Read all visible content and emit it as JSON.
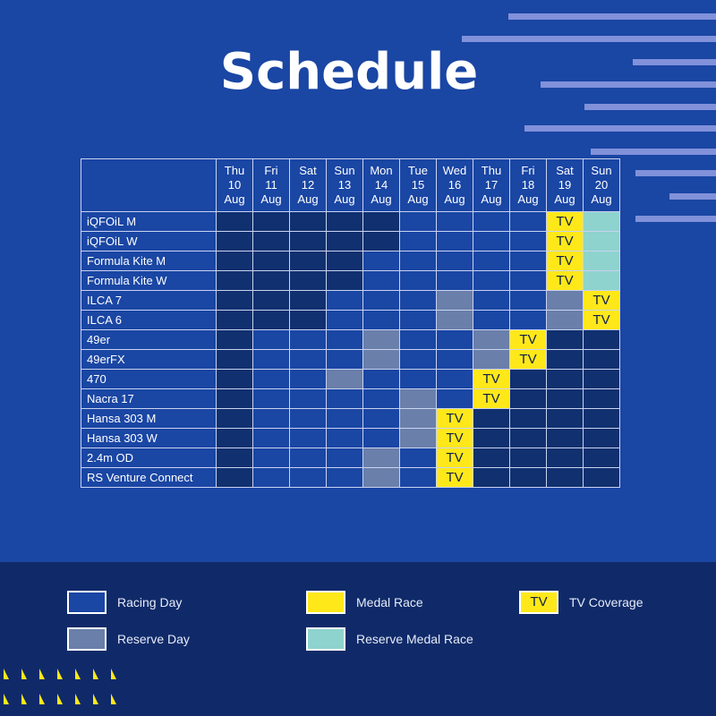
{
  "title": "Schedule",
  "colors": {
    "background": "#1A46A4",
    "footer": "#102A69",
    "racing_day": "#1A46A4",
    "no_racing": "#10306F",
    "reserve_day": "#6A7FAA",
    "medal_race": "#FFE81A",
    "reserve_medal_race": "#8ED3CE",
    "accent_stripes": "#8191DA"
  },
  "days": [
    {
      "weekday": "Thu",
      "date": "10",
      "month": "Aug"
    },
    {
      "weekday": "Fri",
      "date": "11",
      "month": "Aug"
    },
    {
      "weekday": "Sat",
      "date": "12",
      "month": "Aug"
    },
    {
      "weekday": "Sun",
      "date": "13",
      "month": "Aug"
    },
    {
      "weekday": "Mon",
      "date": "14",
      "month": "Aug"
    },
    {
      "weekday": "Tue",
      "date": "15",
      "month": "Aug"
    },
    {
      "weekday": "Wed",
      "date": "16",
      "month": "Aug"
    },
    {
      "weekday": "Thu",
      "date": "17",
      "month": "Aug"
    },
    {
      "weekday": "Fri",
      "date": "18",
      "month": "Aug"
    },
    {
      "weekday": "Sat",
      "date": "19",
      "month": "Aug"
    },
    {
      "weekday": "Sun",
      "date": "20",
      "month": "Aug"
    }
  ],
  "tv_label": "TV",
  "events": [
    {
      "name": "iQFOiL M",
      "cells": [
        "none",
        "none",
        "none",
        "none",
        "none",
        "racing",
        "racing",
        "racing",
        "racing",
        "medal-tv",
        "reservemedal"
      ]
    },
    {
      "name": "iQFOiL W",
      "cells": [
        "none",
        "none",
        "none",
        "none",
        "none",
        "racing",
        "racing",
        "racing",
        "racing",
        "medal-tv",
        "reservemedal"
      ]
    },
    {
      "name": "Formula Kite M",
      "cells": [
        "none",
        "none",
        "none",
        "none",
        "racing",
        "racing",
        "racing",
        "racing",
        "racing",
        "medal-tv",
        "reservemedal"
      ]
    },
    {
      "name": "Formula Kite W",
      "cells": [
        "none",
        "none",
        "none",
        "none",
        "racing",
        "racing",
        "racing",
        "racing",
        "racing",
        "medal-tv",
        "reservemedal"
      ]
    },
    {
      "name": "ILCA 7",
      "cells": [
        "none",
        "none",
        "none",
        "racing",
        "racing",
        "racing",
        "reserve",
        "racing",
        "racing",
        "reserve",
        "medal-tv"
      ]
    },
    {
      "name": "ILCA 6",
      "cells": [
        "none",
        "none",
        "none",
        "racing",
        "racing",
        "racing",
        "reserve",
        "racing",
        "racing",
        "reserve",
        "medal-tv"
      ]
    },
    {
      "name": "49er",
      "cells": [
        "none",
        "racing",
        "racing",
        "racing",
        "reserve",
        "racing",
        "racing",
        "reserve",
        "medal-tv",
        "none",
        "none"
      ]
    },
    {
      "name": "49erFX",
      "cells": [
        "none",
        "racing",
        "racing",
        "racing",
        "reserve",
        "racing",
        "racing",
        "reserve",
        "medal-tv",
        "none",
        "none"
      ]
    },
    {
      "name": "470",
      "cells": [
        "none",
        "racing",
        "racing",
        "reserve",
        "racing",
        "racing",
        "racing",
        "medal-tv",
        "none",
        "none",
        "none"
      ]
    },
    {
      "name": "Nacra 17",
      "cells": [
        "none",
        "racing",
        "racing",
        "racing",
        "racing",
        "reserve",
        "racing",
        "medal-tv",
        "none",
        "none",
        "none"
      ]
    },
    {
      "name": "Hansa 303 M",
      "cells": [
        "none",
        "racing",
        "racing",
        "racing",
        "racing",
        "reserve",
        "medal-tv",
        "none",
        "none",
        "none",
        "none"
      ]
    },
    {
      "name": "Hansa 303 W",
      "cells": [
        "none",
        "racing",
        "racing",
        "racing",
        "racing",
        "reserve",
        "medal-tv",
        "none",
        "none",
        "none",
        "none"
      ]
    },
    {
      "name": "2.4m OD",
      "cells": [
        "none",
        "racing",
        "racing",
        "racing",
        "reserve",
        "racing",
        "medal-tv",
        "none",
        "none",
        "none",
        "none"
      ]
    },
    {
      "name": "RS Venture Connect",
      "cells": [
        "none",
        "racing",
        "racing",
        "racing",
        "reserve",
        "racing",
        "medal-tv",
        "none",
        "none",
        "none",
        "none"
      ]
    }
  ],
  "legend": {
    "racing_day": "Racing Day",
    "reserve_day": "Reserve Day",
    "medal_race": "Medal Race",
    "reserve_medal_race": "Reserve Medal Race",
    "tv_coverage": "TV Coverage",
    "tv_swatch": "TV"
  }
}
